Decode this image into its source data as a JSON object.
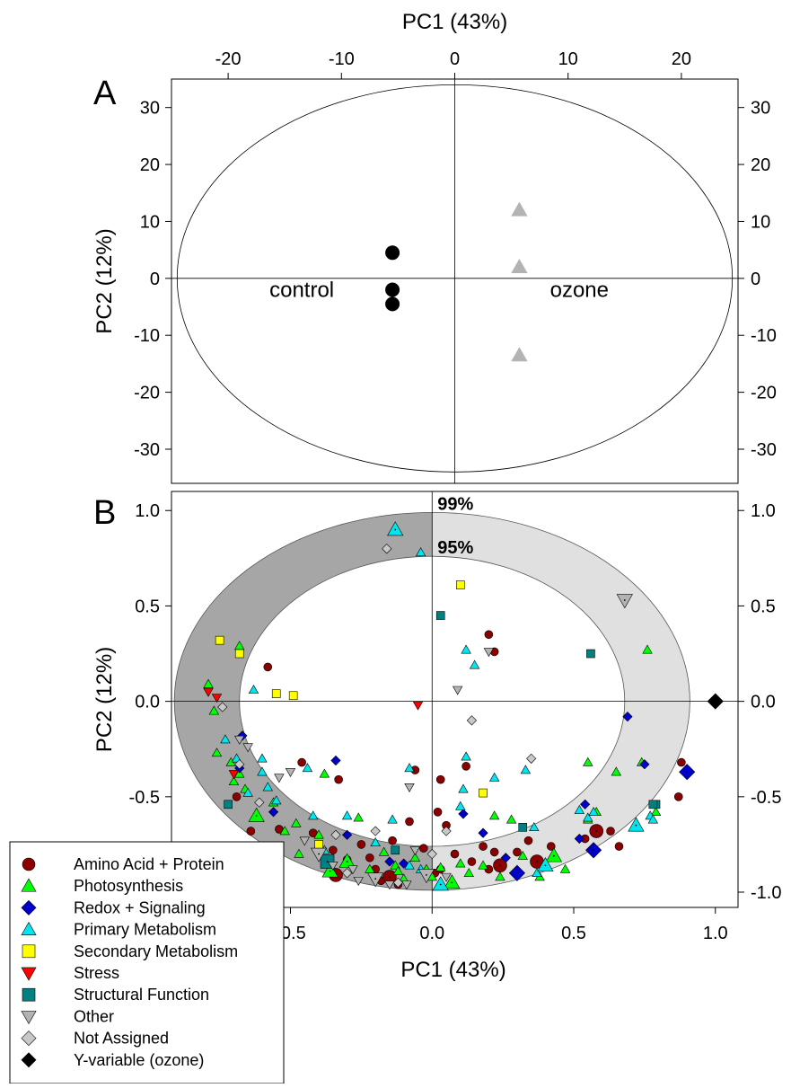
{
  "figure": {
    "panels": [
      "A",
      "B"
    ]
  },
  "chart_data": [
    {
      "panel": "A",
      "type": "scatter",
      "title": "",
      "xlabel": "PC1 (43%)",
      "ylabel": "PC2 (12%)",
      "xlim": [
        -25,
        25
      ],
      "ylim": [
        -36,
        35
      ],
      "xticks": [
        -20,
        -10,
        0,
        10,
        20
      ],
      "yticks": [
        -30,
        -20,
        -10,
        0,
        10,
        20,
        30
      ],
      "grid": false,
      "ellipse": {
        "center": [
          0,
          0
        ],
        "rx": 24.5,
        "ry": 34
      },
      "annotations": [
        {
          "text": "control",
          "x": -13.5,
          "y": -2
        },
        {
          "text": "ozone",
          "x": 11,
          "y": -2
        }
      ],
      "series": [
        {
          "name": "control",
          "marker": "circle",
          "color": "#000000",
          "points": [
            [
              -5.5,
              4.5
            ],
            [
              -5.5,
              -2
            ],
            [
              -5.5,
              -4.5
            ]
          ]
        },
        {
          "name": "ozone",
          "marker": "triangle-up",
          "color": "#b3b3b3",
          "points": [
            [
              5.7,
              12
            ],
            [
              5.7,
              2
            ],
            [
              5.7,
              -13.5
            ]
          ]
        }
      ]
    },
    {
      "panel": "B",
      "type": "scatter",
      "title": "",
      "xlabel": "PC1 (43%)",
      "ylabel": "PC2 (12%)",
      "xlim": [
        -0.92,
        1.08
      ],
      "ylim": [
        -1.08,
        1.1
      ],
      "xticks": [
        -0.5,
        0.0,
        0.5,
        1.0
      ],
      "yticks": [
        -1.0,
        -0.5,
        0.0,
        0.5,
        1.0
      ],
      "grid": false,
      "ellipses": [
        {
          "label": "99%",
          "center": [
            0,
            0
          ],
          "rx": 0.91,
          "ry": 0.99
        },
        {
          "label": "95%",
          "center": [
            0,
            0
          ],
          "rx": 0.68,
          "ry": 0.76
        }
      ],
      "legend": {
        "position": "bottom-left"
      },
      "series": [
        {
          "name": "Amino Acid + Protein",
          "marker": "circle",
          "color": "#8b0000",
          "points": [
            [
              -0.58,
              0.18
            ],
            [
              -0.46,
              -0.32
            ],
            [
              -0.33,
              -0.41
            ],
            [
              -0.42,
              -0.69
            ],
            [
              -0.4,
              -0.76
            ],
            [
              -0.35,
              -0.78
            ],
            [
              -0.34,
              -0.91
            ],
            [
              -0.3,
              -0.83
            ],
            [
              -0.25,
              -0.75
            ],
            [
              -0.22,
              -0.82
            ],
            [
              -0.2,
              -0.88
            ],
            [
              -0.18,
              -0.94
            ],
            [
              -0.15,
              -0.92
            ],
            [
              -0.12,
              -0.96
            ],
            [
              -0.14,
              -0.73
            ],
            [
              -0.08,
              -0.63
            ],
            [
              -0.06,
              -0.36
            ],
            [
              -0.03,
              -0.77
            ],
            [
              0.02,
              -0.58
            ],
            [
              0.01,
              -0.9
            ],
            [
              0.03,
              -0.88
            ],
            [
              0.05,
              -0.65
            ],
            [
              0.08,
              -0.8
            ],
            [
              0.14,
              -0.84
            ],
            [
              0.18,
              -0.76
            ],
            [
              0.2,
              -0.88
            ],
            [
              0.22,
              -0.79
            ],
            [
              0.24,
              -0.86
            ],
            [
              0.3,
              -0.79
            ],
            [
              0.34,
              -0.73
            ],
            [
              0.37,
              -0.84
            ],
            [
              0.42,
              -0.76
            ],
            [
              0.54,
              -0.72
            ],
            [
              0.58,
              -0.68
            ],
            [
              0.63,
              -0.68
            ],
            [
              0.66,
              -0.76
            ],
            [
              0.2,
              0.35
            ],
            [
              0.22,
              0.26
            ],
            [
              0.12,
              -0.34
            ],
            [
              0.03,
              -0.41
            ],
            [
              -0.64,
              -0.68
            ],
            [
              -0.66,
              -0.76
            ],
            [
              -0.54,
              -0.67
            ],
            [
              0.87,
              -0.5
            ],
            [
              0.88,
              -0.32
            ],
            [
              -0.69,
              -0.5
            ]
          ]
        },
        {
          "name": "Photosynthesis",
          "marker": "triangle-up",
          "color": "#00ff00",
          "points": [
            [
              -0.79,
              0.09
            ],
            [
              -0.77,
              -0.05
            ],
            [
              -0.76,
              -0.27
            ],
            [
              -0.71,
              -0.32
            ],
            [
              -0.68,
              -0.38
            ],
            [
              -0.66,
              -0.46
            ],
            [
              -0.7,
              -0.42
            ],
            [
              -0.68,
              0.29
            ],
            [
              -0.56,
              -0.53
            ],
            [
              -0.48,
              -0.64
            ],
            [
              -0.4,
              -0.7
            ],
            [
              -0.38,
              -0.38
            ],
            [
              -0.3,
              -0.84
            ],
            [
              -0.26,
              -0.61
            ],
            [
              -0.22,
              -0.88
            ],
            [
              -0.17,
              -0.79
            ],
            [
              -0.13,
              -0.86
            ],
            [
              -0.1,
              -0.93
            ],
            [
              -0.06,
              -0.82
            ],
            [
              -0.02,
              -0.88
            ],
            [
              0.03,
              -0.87
            ],
            [
              0.07,
              -0.95
            ],
            [
              0.1,
              -0.85
            ],
            [
              0.13,
              -0.9
            ],
            [
              0.18,
              -0.86
            ],
            [
              0.22,
              -0.6
            ],
            [
              0.24,
              -0.92
            ],
            [
              0.28,
              -0.62
            ],
            [
              0.32,
              -0.81
            ],
            [
              0.38,
              -0.92
            ],
            [
              0.43,
              -0.81
            ],
            [
              0.47,
              -0.88
            ],
            [
              0.55,
              -0.62
            ],
            [
              0.58,
              -0.58
            ],
            [
              0.65,
              -0.37
            ],
            [
              0.55,
              -0.32
            ],
            [
              0.74,
              -0.32
            ],
            [
              0.76,
              0.27
            ],
            [
              0.79,
              -0.58
            ],
            [
              -0.62,
              -0.6
            ],
            [
              -0.52,
              -0.68
            ],
            [
              -0.47,
              -0.8
            ],
            [
              -0.36,
              -0.89
            ],
            [
              -0.12,
              -0.89
            ],
            [
              0.0,
              -0.92
            ]
          ]
        },
        {
          "name": "Redox + Signaling",
          "marker": "diamond",
          "color": "#0000cd",
          "points": [
            [
              -0.68,
              -0.35
            ],
            [
              -0.67,
              -0.18
            ],
            [
              -0.34,
              -0.31
            ],
            [
              -0.3,
              -0.7
            ],
            [
              -0.15,
              -0.84
            ],
            [
              -0.1,
              -0.85
            ],
            [
              0.11,
              -0.59
            ],
            [
              0.18,
              -0.69
            ],
            [
              0.26,
              -0.82
            ],
            [
              0.3,
              -0.9
            ],
            [
              0.52,
              -0.72
            ],
            [
              0.54,
              -0.54
            ],
            [
              0.57,
              -0.78
            ],
            [
              0.69,
              -0.08
            ],
            [
              0.75,
              -0.33
            ],
            [
              0.9,
              -0.37
            ],
            [
              -0.56,
              -0.58
            ]
          ]
        },
        {
          "name": "Primary Metabolism",
          "marker": "triangle-up",
          "color": "#00e5ee",
          "points": [
            [
              -0.13,
              0.9
            ],
            [
              -0.04,
              0.78
            ],
            [
              0.12,
              0.27
            ],
            [
              0.15,
              0.19
            ],
            [
              0.11,
              -0.46
            ],
            [
              0.12,
              -0.29
            ],
            [
              0.22,
              -0.4
            ],
            [
              0.33,
              -0.36
            ],
            [
              0.36,
              -0.66
            ],
            [
              0.52,
              -0.57
            ],
            [
              0.55,
              -0.61
            ],
            [
              0.57,
              -0.58
            ],
            [
              0.72,
              -0.65
            ],
            [
              0.77,
              -0.6
            ],
            [
              0.78,
              -0.62
            ],
            [
              -0.73,
              -0.2
            ],
            [
              -0.69,
              -0.3
            ],
            [
              -0.63,
              0.06
            ],
            [
              -0.6,
              -0.3
            ],
            [
              -0.58,
              -0.45
            ],
            [
              -0.55,
              -0.52
            ],
            [
              -0.44,
              -0.35
            ],
            [
              -0.42,
              -0.6
            ],
            [
              -0.38,
              -0.78
            ],
            [
              -0.3,
              -0.6
            ],
            [
              -0.2,
              -0.74
            ],
            [
              -0.14,
              -0.62
            ],
            [
              -0.08,
              -0.35
            ],
            [
              -0.08,
              -0.86
            ],
            [
              -0.04,
              -0.88
            ],
            [
              0.03,
              -0.96
            ],
            [
              0.1,
              -0.55
            ],
            [
              0.37,
              -0.9
            ],
            [
              0.4,
              -0.86
            ],
            [
              -0.65,
              -0.48
            ],
            [
              -0.6,
              -0.37
            ]
          ]
        },
        {
          "name": "Secondary Metabolism",
          "marker": "square",
          "color": "#ffff00",
          "points": [
            [
              -0.75,
              0.32
            ],
            [
              -0.68,
              0.25
            ],
            [
              -0.55,
              0.04
            ],
            [
              -0.49,
              0.03
            ],
            [
              0.1,
              0.61
            ],
            [
              0.18,
              -0.48
            ],
            [
              -0.4,
              -0.75
            ]
          ]
        },
        {
          "name": "Stress",
          "marker": "triangle-down",
          "color": "#ff0000",
          "points": [
            [
              -0.79,
              0.05
            ],
            [
              -0.76,
              0.02
            ],
            [
              -0.05,
              -0.02
            ],
            [
              -0.7,
              -0.38
            ]
          ]
        },
        {
          "name": "Structural Function",
          "marker": "square",
          "color": "#008080",
          "points": [
            [
              0.03,
              0.45
            ],
            [
              0.56,
              0.25
            ],
            [
              0.32,
              -0.66
            ],
            [
              -0.13,
              -0.78
            ],
            [
              -0.72,
              -0.54
            ],
            [
              0.79,
              -0.54
            ],
            [
              -0.37,
              -0.84
            ],
            [
              0.78,
              -0.54
            ]
          ]
        },
        {
          "name": "Other",
          "marker": "triangle-down",
          "color": "#b3b3b3",
          "points": [
            [
              0.68,
              0.53
            ],
            [
              0.2,
              0.26
            ],
            [
              0.09,
              0.06
            ],
            [
              -0.08,
              -0.45
            ],
            [
              -0.5,
              -0.37
            ],
            [
              -0.54,
              -0.4
            ],
            [
              -0.68,
              -0.2
            ],
            [
              -0.65,
              -0.24
            ],
            [
              -0.45,
              -0.73
            ],
            [
              -0.4,
              -0.8
            ],
            [
              -0.35,
              -0.86
            ],
            [
              -0.28,
              -0.88
            ],
            [
              -0.2,
              -0.93
            ],
            [
              -0.15,
              -0.96
            ],
            [
              -0.09,
              -0.96
            ],
            [
              -0.02,
              -0.91
            ],
            [
              0.05,
              -0.92
            ],
            [
              -0.26,
              -0.94
            ],
            [
              -0.06,
              -0.78
            ]
          ]
        },
        {
          "name": "Not Assigned",
          "marker": "diamond",
          "color": "#c8c8c8",
          "points": [
            [
              -0.16,
              0.8
            ],
            [
              0.14,
              -0.1
            ],
            [
              0.35,
              -0.3
            ],
            [
              -0.74,
              -0.03
            ],
            [
              -0.68,
              -0.33
            ],
            [
              -0.61,
              -0.53
            ],
            [
              -0.34,
              -0.7
            ],
            [
              -0.2,
              -0.68
            ],
            [
              0.05,
              -0.68
            ],
            [
              0.0,
              -0.8
            ],
            [
              -0.12,
              -0.95
            ],
            [
              -0.3,
              -0.9
            ]
          ]
        },
        {
          "name": "Y-variable (ozone)",
          "marker": "diamond",
          "color": "#000000",
          "points": [
            [
              1.0,
              0.0
            ]
          ]
        }
      ]
    }
  ]
}
